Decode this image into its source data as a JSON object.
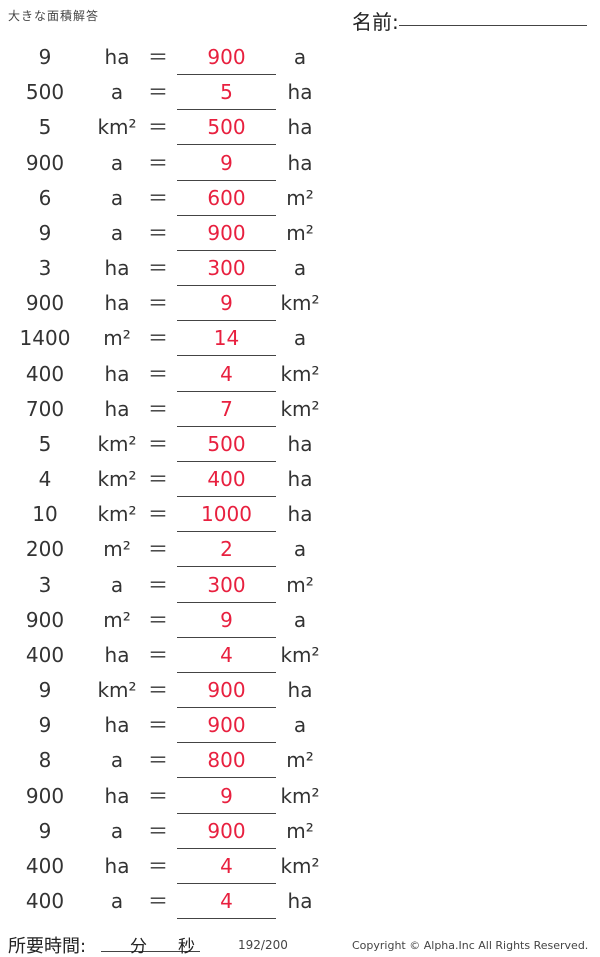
{
  "header": {
    "title": "大きな面積解答",
    "name_label": "名前:"
  },
  "rows": [
    {
      "value": "9",
      "from_unit": "ha",
      "equals": "＝",
      "answer": "900",
      "to_unit": "a"
    },
    {
      "value": "500",
      "from_unit": "a",
      "equals": "＝",
      "answer": "5",
      "to_unit": "ha"
    },
    {
      "value": "5",
      "from_unit": "km²",
      "equals": "＝",
      "answer": "500",
      "to_unit": "ha"
    },
    {
      "value": "900",
      "from_unit": "a",
      "equals": "＝",
      "answer": "9",
      "to_unit": "ha"
    },
    {
      "value": "6",
      "from_unit": "a",
      "equals": "＝",
      "answer": "600",
      "to_unit": "m²"
    },
    {
      "value": "9",
      "from_unit": "a",
      "equals": "＝",
      "answer": "900",
      "to_unit": "m²"
    },
    {
      "value": "3",
      "from_unit": "ha",
      "equals": "＝",
      "answer": "300",
      "to_unit": "a"
    },
    {
      "value": "900",
      "from_unit": "ha",
      "equals": "＝",
      "answer": "9",
      "to_unit": "km²"
    },
    {
      "value": "1400",
      "from_unit": "m²",
      "equals": "＝",
      "answer": "14",
      "to_unit": "a"
    },
    {
      "value": "400",
      "from_unit": "ha",
      "equals": "＝",
      "answer": "4",
      "to_unit": "km²"
    },
    {
      "value": "700",
      "from_unit": "ha",
      "equals": "＝",
      "answer": "7",
      "to_unit": "km²"
    },
    {
      "value": "5",
      "from_unit": "km²",
      "equals": "＝",
      "answer": "500",
      "to_unit": "ha"
    },
    {
      "value": "4",
      "from_unit": "km²",
      "equals": "＝",
      "answer": "400",
      "to_unit": "ha"
    },
    {
      "value": "10",
      "from_unit": "km²",
      "equals": "＝",
      "answer": "1000",
      "to_unit": "ha"
    },
    {
      "value": "200",
      "from_unit": "m²",
      "equals": "＝",
      "answer": "2",
      "to_unit": "a"
    },
    {
      "value": "3",
      "from_unit": "a",
      "equals": "＝",
      "answer": "300",
      "to_unit": "m²"
    },
    {
      "value": "900",
      "from_unit": "m²",
      "equals": "＝",
      "answer": "9",
      "to_unit": "a"
    },
    {
      "value": "400",
      "from_unit": "ha",
      "equals": "＝",
      "answer": "4",
      "to_unit": "km²"
    },
    {
      "value": "9",
      "from_unit": "km²",
      "equals": "＝",
      "answer": "900",
      "to_unit": "ha"
    },
    {
      "value": "9",
      "from_unit": "ha",
      "equals": "＝",
      "answer": "900",
      "to_unit": "a"
    },
    {
      "value": "8",
      "from_unit": "a",
      "equals": "＝",
      "answer": "800",
      "to_unit": "m²"
    },
    {
      "value": "900",
      "from_unit": "ha",
      "equals": "＝",
      "answer": "9",
      "to_unit": "km²"
    },
    {
      "value": "9",
      "from_unit": "a",
      "equals": "＝",
      "answer": "900",
      "to_unit": "m²"
    },
    {
      "value": "400",
      "from_unit": "ha",
      "equals": "＝",
      "answer": "4",
      "to_unit": "km²"
    },
    {
      "value": "400",
      "from_unit": "a",
      "equals": "＝",
      "answer": "4",
      "to_unit": "ha"
    }
  ],
  "footer": {
    "time_label": "所要時間:",
    "minutes_label": "分",
    "seconds_label": "秒",
    "page": "192/200",
    "copyright": "Copyright © Alpha.Inc All Rights Reserved."
  },
  "colors": {
    "answer": "#e8203f",
    "text": "#333333"
  }
}
